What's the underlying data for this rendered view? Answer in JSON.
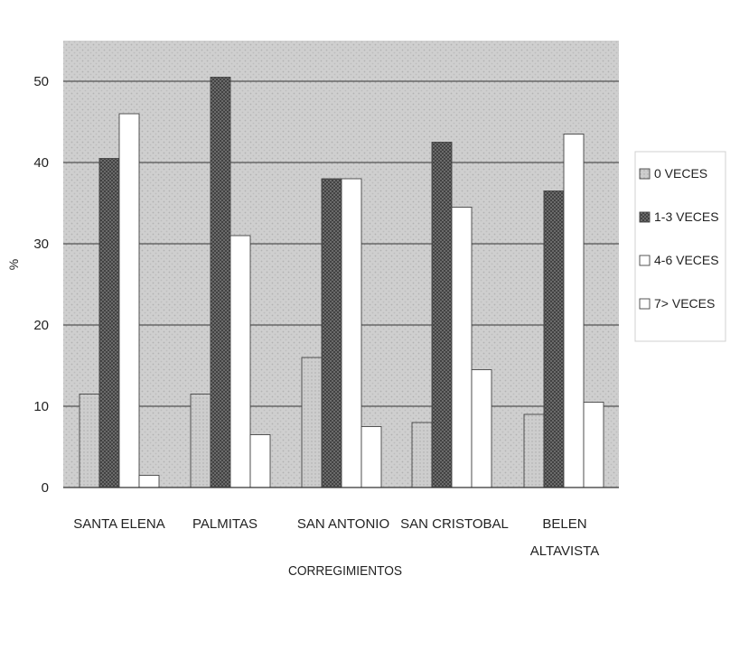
{
  "chart_data": {
    "type": "bar",
    "title": "",
    "xlabel": "CORREGIMIENTOS",
    "ylabel": "%",
    "ylim": [
      0,
      55
    ],
    "yticks": [
      0,
      10,
      20,
      30,
      40,
      50
    ],
    "grid": true,
    "legend_position": "right",
    "categories": [
      [
        "SANTA ELENA"
      ],
      [
        "PALMITAS"
      ],
      [
        "SAN ANTONIO"
      ],
      [
        "SAN CRISTOBAL"
      ],
      [
        "BELEN",
        "ALTAVISTA"
      ]
    ],
    "series": [
      {
        "name": "0 VECES",
        "values": [
          11.5,
          11.5,
          16,
          8,
          9
        ],
        "pattern": "light-gray"
      },
      {
        "name": "1-3 VECES",
        "values": [
          40.5,
          50.5,
          38,
          42.5,
          36.5
        ],
        "pattern": "dark-crosshatch"
      },
      {
        "name": "4-6 VECES",
        "values": [
          46,
          31,
          38,
          34.5,
          43.5
        ],
        "pattern": "white"
      },
      {
        "name": "7> VECES",
        "values": [
          1.5,
          6.5,
          7.5,
          14.5,
          10.5
        ],
        "pattern": "white"
      }
    ]
  },
  "colors": {
    "plot_background": "#c8c8c8",
    "series_light": "#c9c9c9",
    "series_dark": "#6e6e6e",
    "series_white": "#ffffff",
    "axis": "#333333"
  }
}
